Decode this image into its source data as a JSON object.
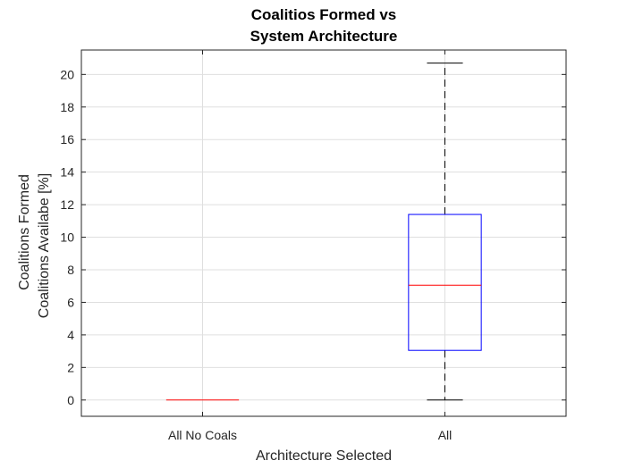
{
  "chart_data": {
    "type": "box",
    "title_lines": [
      "Coalitios Formed vs",
      "System Architecture"
    ],
    "xlabel": "Architecture Selected",
    "ylabel_lines": [
      "Coalitions Formed",
      "Coalitions Availabe [%]"
    ],
    "ylim": [
      -1,
      21.5
    ],
    "yticks": [
      0,
      2,
      4,
      6,
      8,
      10,
      12,
      14,
      16,
      18,
      20
    ],
    "ytick_labels": [
      "0",
      "2",
      "4",
      "6",
      "8",
      "10",
      "12",
      "14",
      "16",
      "18",
      "20"
    ],
    "grid": true,
    "categories": [
      "All No Coals",
      "All"
    ],
    "boxes": [
      {
        "category": "All No Coals",
        "min": 0,
        "q1": 0,
        "median": 0,
        "q3": 0,
        "max": 0
      },
      {
        "category": "All",
        "min": 0,
        "q1": 3.05,
        "median": 7.05,
        "q3": 11.4,
        "max": 20.7
      }
    ],
    "colors": {
      "box": "#0000ff",
      "median": "#ff0000",
      "whisker": "#000000",
      "grid": "#dfdfdf",
      "axes": "#262626"
    }
  }
}
